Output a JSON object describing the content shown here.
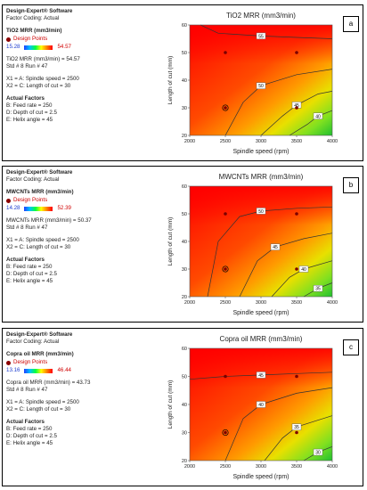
{
  "chart_data": [
    {
      "type": "contour",
      "badge": "a",
      "software": "Design-Expert® Software",
      "coding": "Factor Coding: Actual",
      "response": "TiO2 MRR (mm3/min)",
      "design_points_label": "Design Points",
      "range_low": "15.28",
      "range_high": "54.57",
      "point_value_line": "TiO2 MRR (mm3/min) = 54.57",
      "run_line": "Std # 8 Run # 47",
      "x1_line": "X1 = A: Spindle speed = 2500",
      "x2_line": "X2 = C: Length of cut = 30",
      "actual_factors_title": "Actual Factors",
      "factor_b": "B: Feed rate = 250",
      "factor_d": "D: Depth of cut = 2.5",
      "factor_e": "E: Helix angle = 45",
      "title": "TiO2 MRR (mm3/min)",
      "xlabel": "Spindle speed (rpm)",
      "ylabel": "Length of cut (mm)",
      "x_ticks": [
        "2000",
        "2500",
        "3000",
        "3500",
        "4000"
      ],
      "y_ticks": [
        "20",
        "30",
        "40",
        "50",
        "60"
      ],
      "xlim": [
        2000,
        4000
      ],
      "ylim": [
        20,
        60
      ],
      "design_points": [
        {
          "x": 2500,
          "y": 50
        },
        {
          "x": 3500,
          "y": 50
        },
        {
          "x": 2500,
          "y": 30
        },
        {
          "x": 3500,
          "y": 30
        }
      ],
      "contours": [
        {
          "label": "55",
          "points": [
            [
              2150,
              60
            ],
            [
              2400,
              57
            ],
            [
              3000,
              56
            ],
            [
              3500,
              55.5
            ],
            [
              4000,
              55
            ]
          ]
        },
        {
          "label": "50",
          "points": [
            [
              2500,
              20
            ],
            [
              2750,
              32
            ],
            [
              3000,
              38
            ],
            [
              3500,
              42
            ],
            [
              4000,
              44
            ]
          ]
        },
        {
          "label": "45",
          "points": [
            [
              3000,
              20
            ],
            [
              3300,
              27
            ],
            [
              3500,
              31
            ],
            [
              3800,
              35
            ],
            [
              4000,
              36
            ]
          ]
        },
        {
          "label": "40",
          "points": [
            [
              3400,
              20
            ],
            [
              3650,
              24
            ],
            [
              3800,
              27
            ],
            [
              4000,
              29
            ]
          ]
        }
      ]
    },
    {
      "type": "contour",
      "badge": "b",
      "software": "Design-Expert® Software",
      "coding": "Factor Coding: Actual",
      "response": "MWCNTs MRR (mm3/min)",
      "design_points_label": "Design Points",
      "range_low": "14.28",
      "range_high": "52.39",
      "point_value_line": "MWCNTs MRR (mm3/min) = 50.37",
      "run_line": "Std # 8 Run # 47",
      "x1_line": "X1 = A: Spindle speed = 2500",
      "x2_line": "X2 = C: Length of cut = 30",
      "actual_factors_title": "Actual Factors",
      "factor_b": "B: Feed rate = 250",
      "factor_d": "D: Depth of cut = 2.5",
      "factor_e": "E: Helix angle = 45",
      "title": "MWCNTs MRR (mm3/min)",
      "xlabel": "Spindle speed (rpm)",
      "ylabel": "Length of cut (mm)",
      "x_ticks": [
        "2000",
        "2500",
        "3000",
        "3500",
        "4000"
      ],
      "y_ticks": [
        "20",
        "30",
        "40",
        "50",
        "60"
      ],
      "xlim": [
        2000,
        4000
      ],
      "ylim": [
        20,
        60
      ],
      "design_points": [
        {
          "x": 2500,
          "y": 50
        },
        {
          "x": 3500,
          "y": 50
        },
        {
          "x": 2500,
          "y": 30
        },
        {
          "x": 3500,
          "y": 30
        }
      ],
      "contours": [
        {
          "label": "50",
          "points": [
            [
              2250,
              20
            ],
            [
              2400,
              40
            ],
            [
              2700,
              49
            ],
            [
              3000,
              51
            ],
            [
              3500,
              52
            ],
            [
              4000,
              52.5
            ]
          ]
        },
        {
          "label": "45",
          "points": [
            [
              2700,
              20
            ],
            [
              2950,
              33
            ],
            [
              3200,
              38
            ],
            [
              3600,
              41
            ],
            [
              4000,
              43
            ]
          ]
        },
        {
          "label": "40",
          "points": [
            [
              3150,
              20
            ],
            [
              3400,
              27
            ],
            [
              3600,
              30
            ],
            [
              4000,
              33
            ]
          ]
        },
        {
          "label": "35",
          "points": [
            [
              3600,
              20
            ],
            [
              3800,
              23
            ],
            [
              4000,
              25
            ]
          ]
        }
      ]
    },
    {
      "type": "contour",
      "badge": "c",
      "software": "Design-Expert® Software",
      "coding": "Factor Coding: Actual",
      "response": "Copra oil MRR (mm3/min)",
      "design_points_label": "Design Points",
      "range_low": "13.16",
      "range_high": "46.44",
      "point_value_line": "Copra oil MRR (mm3/min) = 43.73",
      "run_line": "Std # 8 Run # 47",
      "x1_line": "X1 = A: Spindle speed = 2500",
      "x2_line": "X2 = C: Length of cut = 30",
      "actual_factors_title": "Actual Factors",
      "factor_b": "B: Feed rate = 250",
      "factor_d": "D: Depth of cut = 2.5",
      "factor_e": "E: Helix angle = 45",
      "title": "Copra oil  MRR (mm3/min)",
      "xlabel": "Spindle speed (rpm)",
      "ylabel": "Length of cut (mm)",
      "x_ticks": [
        "2000",
        "2500",
        "3000",
        "3500",
        "4000"
      ],
      "y_ticks": [
        "20",
        "30",
        "40",
        "50",
        "60"
      ],
      "xlim": [
        2000,
        4000
      ],
      "ylim": [
        20,
        60
      ],
      "design_points": [
        {
          "x": 2500,
          "y": 50
        },
        {
          "x": 3500,
          "y": 50
        },
        {
          "x": 2500,
          "y": 30
        },
        {
          "x": 3500,
          "y": 30
        }
      ],
      "contours": [
        {
          "label": "45",
          "points": [
            [
              2000,
              49
            ],
            [
              2500,
              50
            ],
            [
              3000,
              50.5
            ],
            [
              3500,
              51
            ],
            [
              4000,
              51.5
            ]
          ]
        },
        {
          "label": "40",
          "points": [
            [
              2500,
              20
            ],
            [
              2750,
              35
            ],
            [
              3000,
              40
            ],
            [
              3500,
              44
            ],
            [
              4000,
              46
            ]
          ]
        },
        {
          "label": "35",
          "points": [
            [
              3050,
              20
            ],
            [
              3300,
              28
            ],
            [
              3500,
              32
            ],
            [
              4000,
              36
            ]
          ]
        },
        {
          "label": "30",
          "points": [
            [
              3600,
              20
            ],
            [
              3800,
              23
            ],
            [
              4000,
              25
            ]
          ]
        }
      ]
    }
  ]
}
